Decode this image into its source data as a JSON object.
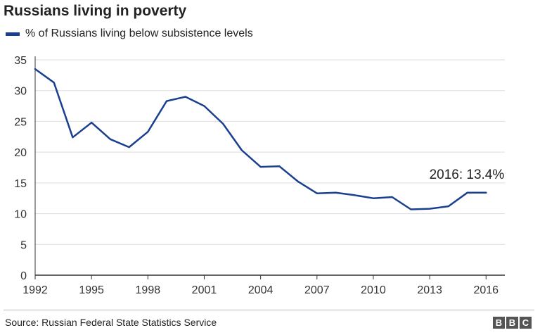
{
  "chart_data": {
    "type": "line",
    "title": "Russians living in poverty",
    "xlabel": "",
    "ylabel": "",
    "x": [
      1992,
      1993,
      1994,
      1995,
      1996,
      1997,
      1998,
      1999,
      2000,
      2001,
      2002,
      2003,
      2004,
      2005,
      2006,
      2007,
      2008,
      2009,
      2010,
      2011,
      2012,
      2013,
      2014,
      2015,
      2016
    ],
    "series": [
      {
        "name": "% of Russians living below subsistence levels",
        "values": [
          33.5,
          31.3,
          22.4,
          24.8,
          22.1,
          20.8,
          23.3,
          28.3,
          29.0,
          27.5,
          24.6,
          20.3,
          17.6,
          17.7,
          15.2,
          13.3,
          13.4,
          13.0,
          12.5,
          12.7,
          10.7,
          10.8,
          11.2,
          13.4,
          13.4
        ]
      }
    ],
    "xticks": [
      1992,
      1995,
      1998,
      2001,
      2004,
      2007,
      2010,
      2013,
      2016
    ],
    "yticks": [
      0,
      5,
      10,
      15,
      20,
      25,
      30,
      35
    ],
    "xlim": [
      1992,
      2017
    ],
    "ylim": [
      0,
      35
    ],
    "grid": true,
    "legend_position": "top-left",
    "annotation": {
      "x": 2016,
      "y": 13.4,
      "text": "2016: 13.4%"
    },
    "colors": {
      "line": "#1b3f8f",
      "grid": "#dddddd",
      "axis": "#333333"
    }
  },
  "footer": {
    "source": "Source: Russian Federal State Statistics Service",
    "logo_letters": [
      "B",
      "B",
      "C"
    ]
  }
}
